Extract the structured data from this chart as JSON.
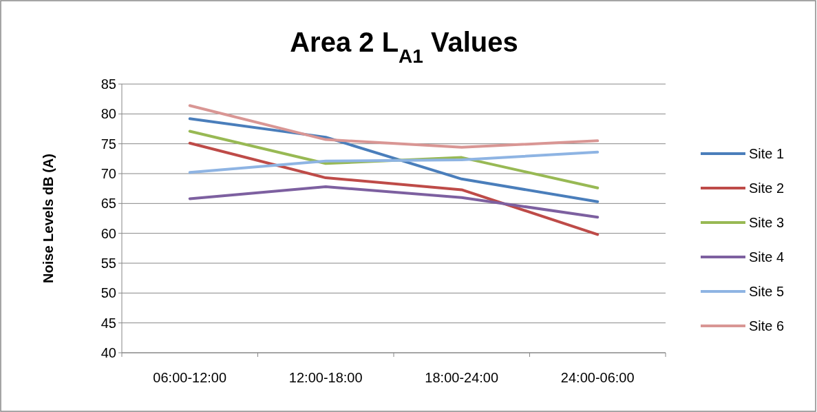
{
  "chart_data": {
    "type": "line",
    "title": "Area 2 L$_{A1}$ Values",
    "ylabel": "Noise Levels dB (A)",
    "categories": [
      "06:00-12:00",
      "12:00-18:00",
      "18:00-24:00",
      "24:00-06:00"
    ],
    "ylim": [
      40,
      85
    ],
    "yticks": [
      40,
      45,
      50,
      55,
      60,
      65,
      70,
      75,
      80,
      85
    ],
    "grid": "y",
    "legend": "right",
    "marker": "none",
    "series": [
      {
        "name": "Site 1",
        "color": "#4a7ebb",
        "values": [
          79.2,
          76.1,
          69.1,
          65.3
        ]
      },
      {
        "name": "Site 2",
        "color": "#be4b48",
        "values": [
          75.1,
          69.3,
          67.3,
          59.8
        ]
      },
      {
        "name": "Site 3",
        "color": "#98b954",
        "values": [
          77.1,
          71.7,
          72.7,
          67.6
        ]
      },
      {
        "name": "Site 4",
        "color": "#7d60a0",
        "values": [
          65.8,
          67.8,
          66.0,
          62.7
        ]
      },
      {
        "name": "Site 5",
        "color": "#8eb4e3",
        "values": [
          70.2,
          72.1,
          72.3,
          73.6
        ]
      },
      {
        "name": "Site 6",
        "color": "#d99694",
        "values": [
          81.4,
          75.7,
          74.4,
          75.5
        ]
      }
    ]
  }
}
